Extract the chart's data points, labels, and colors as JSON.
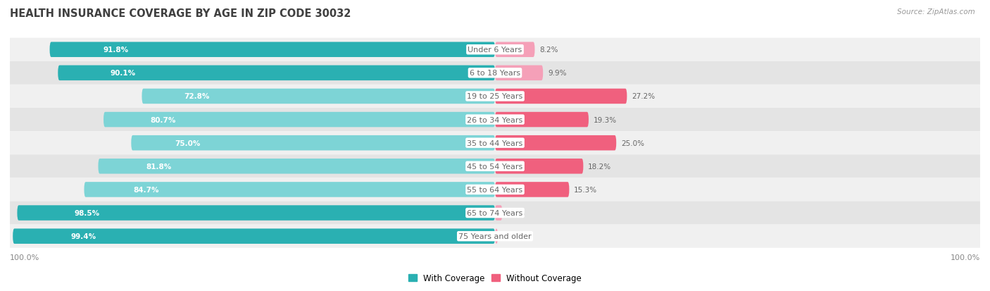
{
  "title": "HEALTH INSURANCE COVERAGE BY AGE IN ZIP CODE 30032",
  "source": "Source: ZipAtlas.com",
  "categories": [
    "Under 6 Years",
    "6 to 18 Years",
    "19 to 25 Years",
    "26 to 34 Years",
    "35 to 44 Years",
    "45 to 54 Years",
    "55 to 64 Years",
    "65 to 74 Years",
    "75 Years and older"
  ],
  "with_coverage": [
    91.8,
    90.1,
    72.8,
    80.7,
    75.0,
    81.8,
    84.7,
    98.5,
    99.4
  ],
  "without_coverage": [
    8.2,
    9.9,
    27.2,
    19.3,
    25.0,
    18.2,
    15.3,
    1.5,
    0.59
  ],
  "color_with_dark": "#2ab0b2",
  "color_with_light": "#7dd4d6",
  "color_without_dark": "#f0607e",
  "color_without_light": "#f5a0b8",
  "row_bg_odd": "#f0f0f0",
  "row_bg_even": "#e4e4e4",
  "title_color": "#404040",
  "source_color": "#999999",
  "label_white": "#ffffff",
  "label_dark": "#666666",
  "axis_label_color": "#888888",
  "legend_with_color": "#2ab0b2",
  "legend_without_color": "#f0607e",
  "without_dark_threshold": 12.0
}
